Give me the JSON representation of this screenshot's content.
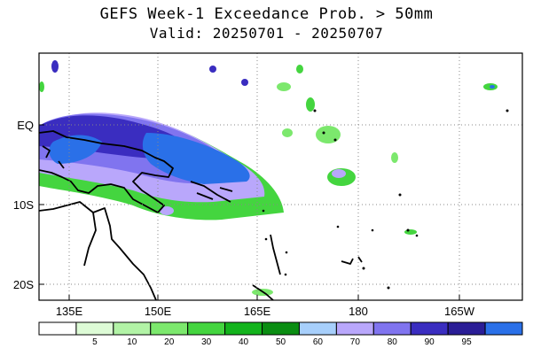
{
  "title": {
    "line1": "GEFS Week-1 Exceedance Prob. > 50mm",
    "line2": "Valid: 20250701 - 20250707"
  },
  "map": {
    "lon_labels": [
      "135E",
      "150E",
      "165E",
      "180",
      "165W"
    ],
    "lat_labels": [
      "EQ",
      "10S",
      "20S"
    ],
    "grid": "dotted"
  },
  "colorbar": {
    "thresholds": [
      "5",
      "10",
      "20",
      "30",
      "40",
      "50",
      "60",
      "70",
      "80",
      "90",
      "95"
    ],
    "colors": [
      "#ffffff",
      "#ddfbd6",
      "#b2f3a6",
      "#7ce86d",
      "#44d53f",
      "#13b31c",
      "#0a8d12",
      "#a7cffb",
      "#b9a7fb",
      "#8074ef",
      "#3a2dc0",
      "#2a1d96",
      "#2a70e8"
    ]
  }
}
